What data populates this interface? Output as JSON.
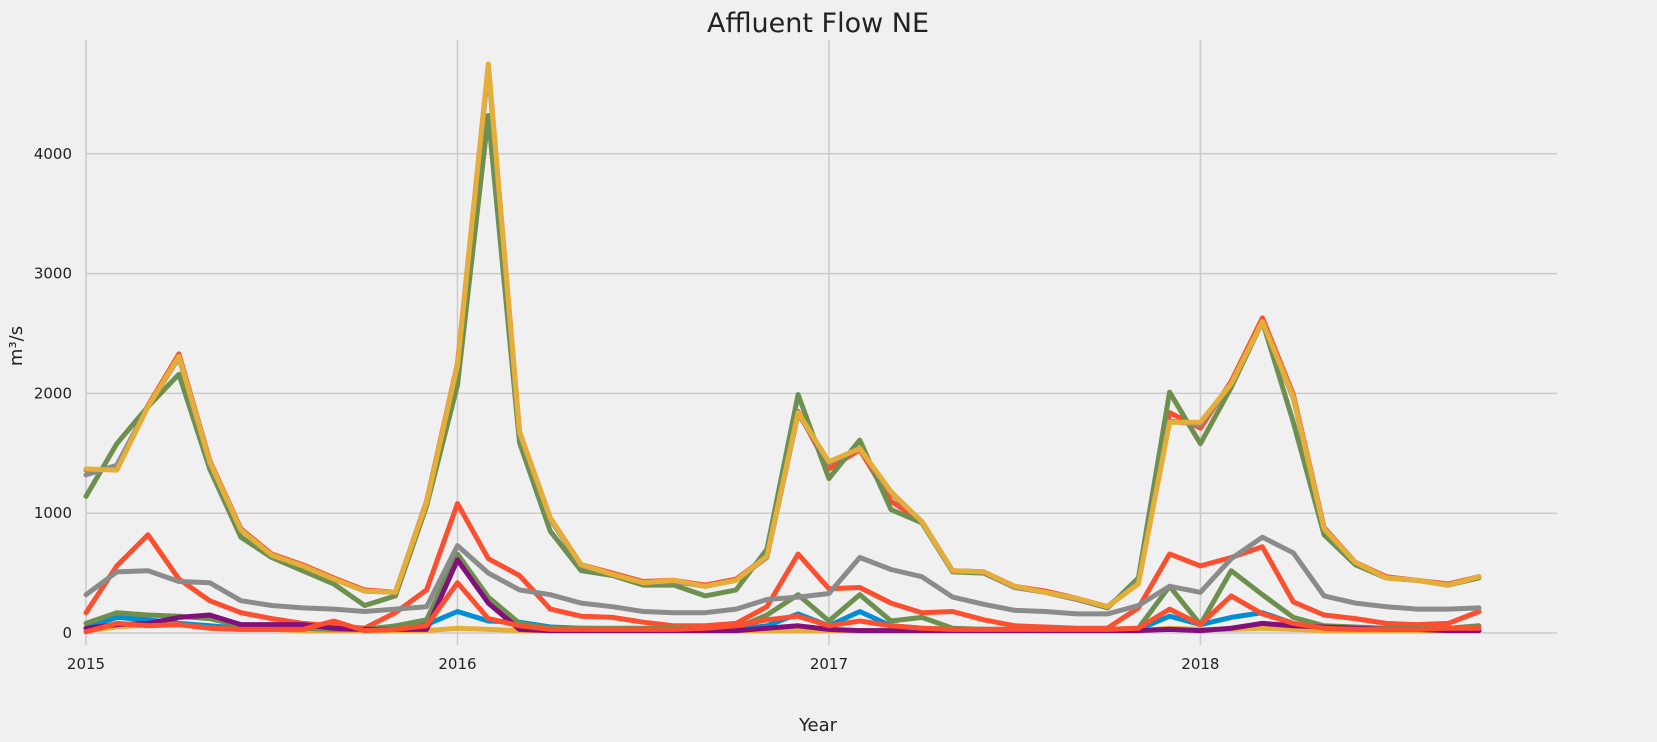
{
  "chart_data": {
    "type": "line",
    "title": "Affluent Flow NE",
    "xlabel": "Year",
    "ylabel": "m³/s",
    "xlim": [
      2015.0,
      2018.96
    ],
    "ylim": [
      -100,
      4950
    ],
    "xticks": [
      2015,
      2016,
      2017,
      2018
    ],
    "yticks": [
      0,
      1000,
      2000,
      3000,
      4000
    ],
    "grid": true,
    "x": [
      2015.0,
      2015.083,
      2015.167,
      2015.25,
      2015.333,
      2015.417,
      2015.5,
      2015.583,
      2015.667,
      2015.75,
      2015.833,
      2015.917,
      2016.0,
      2016.083,
      2016.167,
      2016.25,
      2016.333,
      2016.417,
      2016.5,
      2016.583,
      2016.667,
      2016.75,
      2016.833,
      2016.917,
      2017.0,
      2017.083,
      2017.167,
      2017.25,
      2017.333,
      2017.417,
      2017.5,
      2017.583,
      2017.667,
      2017.75,
      2017.833,
      2017.917,
      2018.0,
      2018.083,
      2018.167,
      2018.25,
      2018.333,
      2018.417,
      2018.5,
      2018.583,
      2018.667,
      2018.75
    ],
    "series": [
      {
        "color": "#008fd5",
        "values": [
          40,
          130,
          110,
          80,
          60,
          40,
          35,
          30,
          25,
          20,
          30,
          70,
          180,
          100,
          90,
          50,
          40,
          35,
          30,
          30,
          30,
          30,
          60,
          160,
          60,
          180,
          60,
          40,
          30,
          30,
          30,
          30,
          30,
          30,
          30,
          140,
          70,
          130,
          170,
          80,
          40,
          30,
          30,
          30,
          30,
          30
        ]
      },
      {
        "color": "#fc4f30",
        "values": [
          170,
          560,
          820,
          450,
          270,
          170,
          120,
          80,
          60,
          40,
          170,
          360,
          1080,
          620,
          480,
          200,
          140,
          130,
          90,
          60,
          60,
          80,
          220,
          660,
          370,
          380,
          250,
          170,
          180,
          110,
          60,
          50,
          40,
          40,
          210,
          660,
          560,
          630,
          720,
          260,
          150,
          120,
          80,
          70,
          80,
          180
        ]
      },
      {
        "color": "#e5ae38",
        "values": [
          20,
          50,
          70,
          70,
          40,
          30,
          30,
          20,
          20,
          20,
          20,
          20,
          40,
          30,
          20,
          20,
          20,
          20,
          20,
          20,
          20,
          20,
          20,
          20,
          20,
          20,
          20,
          20,
          20,
          20,
          20,
          20,
          20,
          20,
          20,
          40,
          30,
          30,
          40,
          30,
          20,
          20,
          20,
          20,
          20,
          20
        ]
      },
      {
        "color": "#6d904f",
        "values": [
          80,
          170,
          150,
          140,
          120,
          60,
          50,
          40,
          30,
          30,
          60,
          110,
          660,
          300,
          80,
          40,
          40,
          40,
          40,
          40,
          40,
          40,
          150,
          320,
          100,
          320,
          100,
          130,
          40,
          30,
          30,
          30,
          30,
          30,
          40,
          390,
          70,
          520,
          320,
          130,
          60,
          50,
          40,
          40,
          40,
          60
        ]
      },
      {
        "color": "#8b8b8b",
        "values": [
          320,
          510,
          520,
          430,
          420,
          270,
          230,
          210,
          200,
          180,
          200,
          220,
          730,
          500,
          360,
          320,
          250,
          220,
          180,
          170,
          170,
          200,
          280,
          300,
          330,
          630,
          530,
          470,
          300,
          240,
          190,
          180,
          160,
          160,
          230,
          390,
          340,
          620,
          800,
          670,
          310,
          250,
          220,
          200,
          200,
          210
        ]
      },
      {
        "color": "#810f7c",
        "values": [
          40,
          70,
          80,
          130,
          150,
          70,
          70,
          70,
          40,
          30,
          30,
          30,
          610,
          250,
          30,
          20,
          20,
          20,
          20,
          20,
          20,
          20,
          40,
          60,
          30,
          20,
          20,
          20,
          20,
          20,
          20,
          20,
          20,
          20,
          20,
          30,
          20,
          40,
          80,
          60,
          50,
          40,
          30,
          30,
          20,
          20
        ]
      },
      {
        "color": "#fc4f30",
        "values": [
          10,
          80,
          60,
          70,
          40,
          30,
          30,
          30,
          100,
          20,
          30,
          60,
          420,
          120,
          60,
          30,
          30,
          30,
          30,
          30,
          40,
          60,
          110,
          140,
          60,
          100,
          60,
          40,
          30,
          30,
          30,
          30,
          30,
          30,
          40,
          200,
          70,
          310,
          160,
          80,
          40,
          30,
          30,
          30,
          40,
          40
        ]
      },
      {
        "color": "#fc4f30",
        "values": [
          1360,
          1370,
          1900,
          2330,
          1440,
          870,
          660,
          570,
          460,
          360,
          340,
          1100,
          2250,
          4740,
          1680,
          960,
          570,
          500,
          430,
          440,
          400,
          450,
          640,
          1850,
          1370,
          1530,
          1100,
          930,
          520,
          510,
          390,
          350,
          290,
          220,
          430,
          1840,
          1710,
          2100,
          2630,
          1990,
          880,
          590,
          470,
          440,
          410,
          470
        ]
      },
      {
        "color": "#6d904f",
        "values": [
          1140,
          1580,
          1890,
          2160,
          1370,
          800,
          630,
          520,
          410,
          230,
          310,
          1060,
          2070,
          4320,
          1590,
          850,
          520,
          480,
          400,
          400,
          310,
          360,
          700,
          1990,
          1290,
          1610,
          1030,
          920,
          510,
          500,
          380,
          340,
          280,
          210,
          460,
          2010,
          1580,
          2050,
          2600,
          1760,
          820,
          570,
          460,
          440,
          400,
          460
        ]
      },
      {
        "color": "#8b8b8b",
        "values": [
          1320,
          1400,
          1890,
          2300,
          1420,
          860,
          650,
          560,
          450,
          350,
          340,
          1090,
          2230,
          4720,
          1670,
          950,
          560,
          490,
          420,
          430,
          390,
          440,
          630,
          1830,
          1420,
          1540,
          1170,
          930,
          520,
          510,
          380,
          340,
          280,
          220,
          420,
          1770,
          1740,
          2080,
          2600,
          1960,
          870,
          590,
          460,
          440,
          400,
          470
        ]
      },
      {
        "color": "#e5ae38",
        "values": [
          1370,
          1360,
          1890,
          2310,
          1430,
          860,
          650,
          560,
          450,
          350,
          340,
          1090,
          2240,
          4750,
          1680,
          960,
          570,
          490,
          420,
          440,
          390,
          440,
          640,
          1840,
          1430,
          1540,
          1180,
          930,
          520,
          510,
          390,
          340,
          290,
          220,
          410,
          1760,
          1760,
          2080,
          2600,
          1970,
          870,
          590,
          460,
          440,
          400,
          470
        ]
      }
    ]
  }
}
